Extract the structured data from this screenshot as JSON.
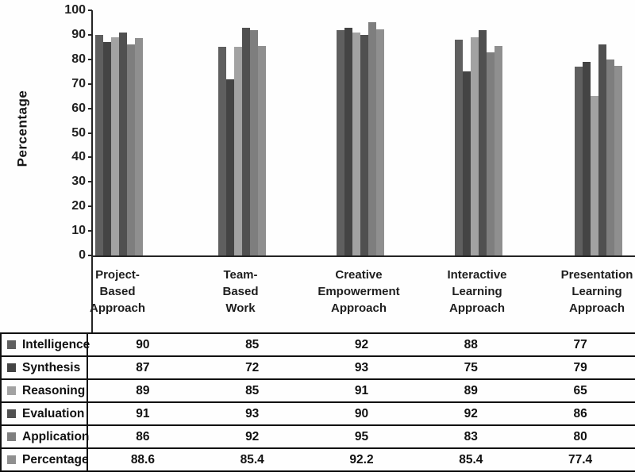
{
  "figure": {
    "y_axis_label": "Percentage"
  },
  "chart_data": {
    "type": "bar",
    "title": "",
    "xlabel": "",
    "ylabel": "Percentage",
    "ylim": [
      0,
      100
    ],
    "y_ticks": [
      0,
      10,
      20,
      30,
      40,
      50,
      60,
      70,
      80,
      90,
      100
    ],
    "grid": false,
    "legend_position": "table-left-column",
    "data_table_shown": true,
    "categories": [
      "Project-Based Approach",
      "Team-Based Work",
      "Creative Empowerment Approach",
      "Interactive Learning Approach",
      "Presentation Learning Approach"
    ],
    "category_lines": [
      [
        "Project-",
        "Based",
        "Approach"
      ],
      [
        "Team-",
        "Based",
        "Work"
      ],
      [
        "Creative",
        "Empowerment",
        "Approach"
      ],
      [
        "Interactive",
        "Learning",
        "Approach"
      ],
      [
        "Presentation",
        "Learning",
        "Approach"
      ]
    ],
    "series": [
      {
        "name": "Intelligence",
        "color": "#5f5f5f",
        "values": [
          90,
          85,
          92,
          88,
          77
        ]
      },
      {
        "name": "Synthesis",
        "color": "#444444",
        "values": [
          87,
          72,
          93,
          75,
          79
        ]
      },
      {
        "name": "Reasoning",
        "color": "#a2a2a2",
        "values": [
          89,
          85,
          91,
          89,
          65
        ]
      },
      {
        "name": "Evaluation",
        "color": "#505050",
        "values": [
          91,
          93,
          90,
          92,
          86
        ]
      },
      {
        "name": "Application",
        "color": "#7e7e7e",
        "values": [
          86,
          92,
          95,
          83,
          80
        ]
      },
      {
        "name": "Percentage",
        "color": "#8f8f8f",
        "values": [
          88.6,
          85.4,
          92.2,
          85.4,
          77.4
        ]
      }
    ]
  }
}
